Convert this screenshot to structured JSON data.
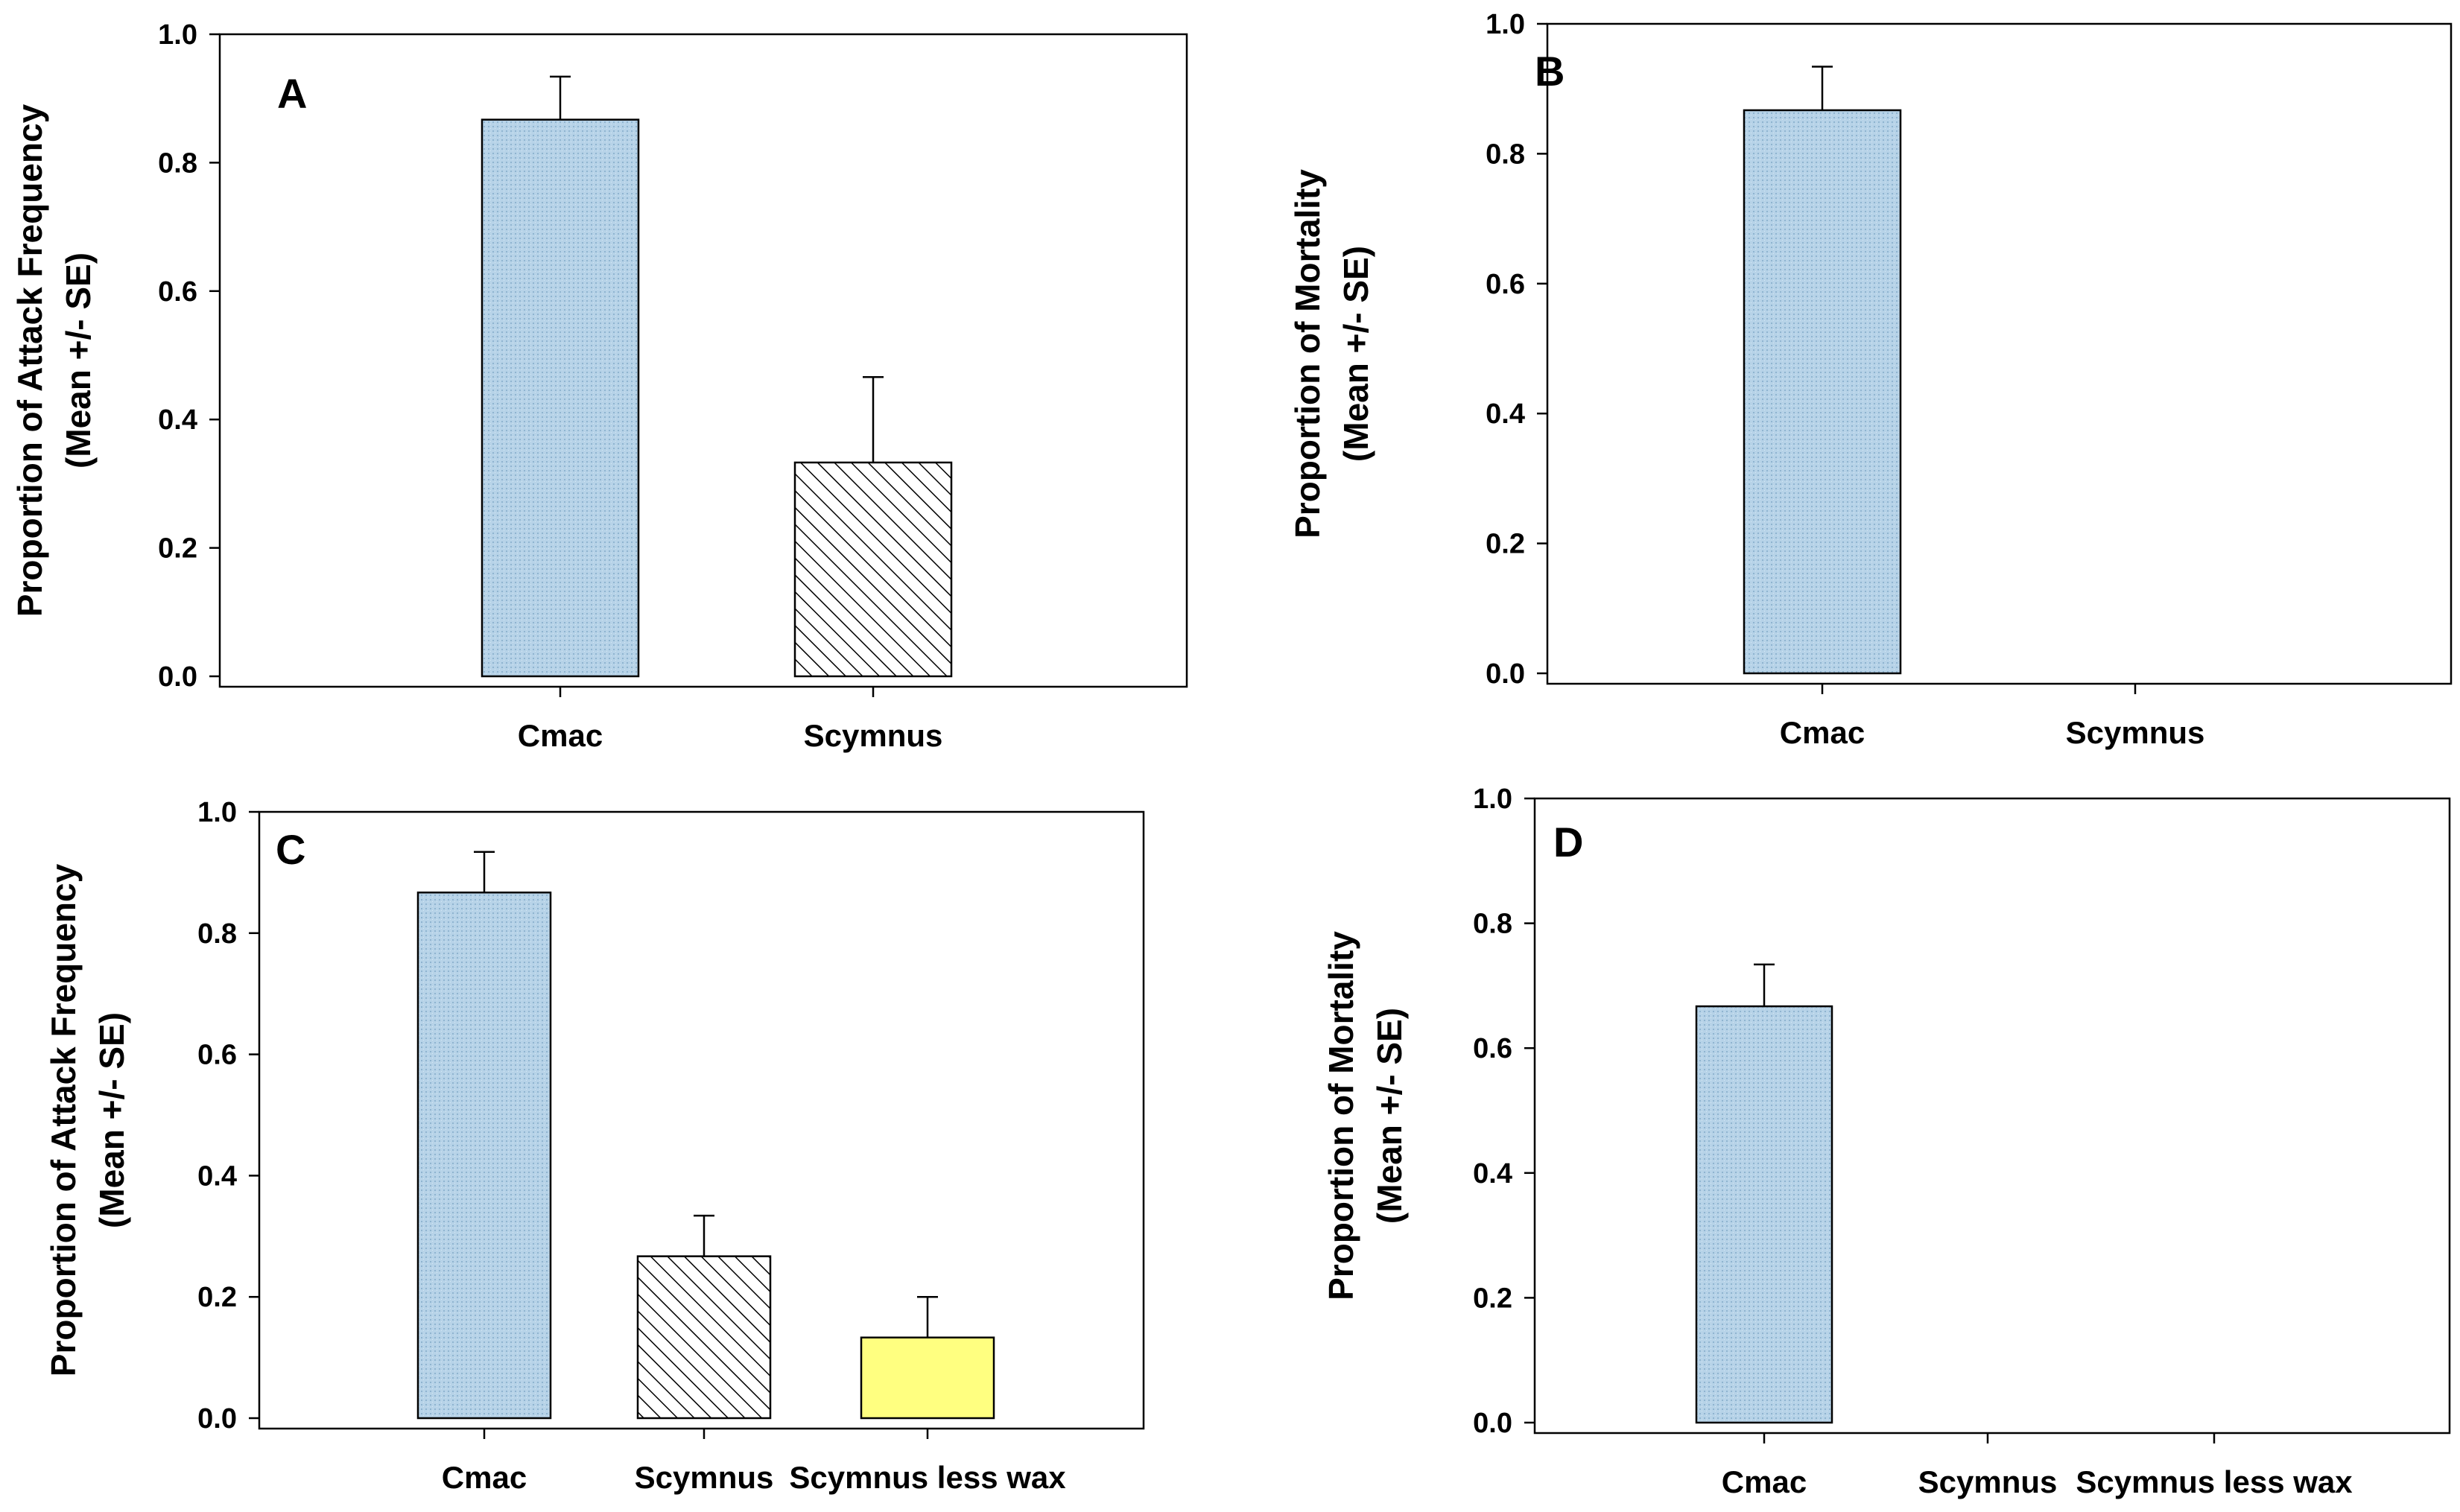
{
  "chart_data": [
    {
      "type": "bar",
      "panel": "A",
      "ylabel_line1": "Proportion of Attack Frequency",
      "ylabel_line2": "(Mean +/- SE)",
      "ylim": [
        0,
        1.0
      ],
      "yticks": [
        "0.0",
        "0.2",
        "0.4",
        "0.6",
        "0.8",
        "1.0"
      ],
      "categories": [
        "Cmac",
        "Scymnus"
      ],
      "values": [
        0.867,
        0.333
      ],
      "errors": [
        0.067,
        0.133
      ],
      "fills": [
        "dotblue",
        "hatch"
      ]
    },
    {
      "type": "bar",
      "panel": "B",
      "ylabel_line1": "Proportion of Mortality",
      "ylabel_line2": "(Mean +/- SE)",
      "ylim": [
        0,
        1.0
      ],
      "yticks": [
        "0.0",
        "0.2",
        "0.4",
        "0.6",
        "0.8",
        "1.0"
      ],
      "categories": [
        "Cmac",
        "Scymnus"
      ],
      "values": [
        0.867,
        0
      ],
      "errors": [
        0.067,
        0
      ],
      "fills": [
        "dotblue",
        "none"
      ]
    },
    {
      "type": "bar",
      "panel": "C",
      "ylabel_line1": "Proportion of Attack Frequency",
      "ylabel_line2": "(Mean +/- SE)",
      "ylim": [
        0,
        1.0
      ],
      "yticks": [
        "0.0",
        "0.2",
        "0.4",
        "0.6",
        "0.8",
        "1.0"
      ],
      "categories": [
        "Cmac",
        "Scymnus",
        "Scymnus less wax"
      ],
      "values": [
        0.867,
        0.267,
        0.133
      ],
      "errors": [
        0.067,
        0.067,
        0.067
      ],
      "fills": [
        "dotblue",
        "hatch",
        "yellow"
      ]
    },
    {
      "type": "bar",
      "panel": "D",
      "ylabel_line1": "Proportion of Mortality",
      "ylabel_line2": "(Mean +/- SE)",
      "ylim": [
        0,
        1.0
      ],
      "yticks": [
        "0.0",
        "0.2",
        "0.4",
        "0.6",
        "0.8",
        "1.0"
      ],
      "categories": [
        "Cmac",
        "Scymnus",
        "Scymnus less wax"
      ],
      "values": [
        0.667,
        0,
        0
      ],
      "errors": [
        0.067,
        0,
        0
      ],
      "fills": [
        "dotblue",
        "none",
        "none"
      ]
    }
  ],
  "colors": {
    "blue_fill": "#b7d3e8",
    "blue_dot": "#8fb4d0",
    "yellow_fill": "#ffff80",
    "hatch_line": "#000000",
    "axis": "#000000"
  }
}
